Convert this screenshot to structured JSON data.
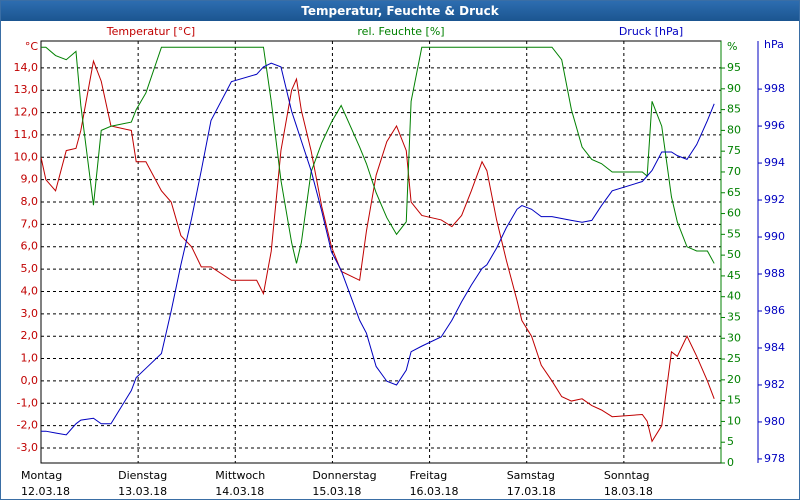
{
  "chart_data": {
    "type": "line",
    "title": "Temperatur, Feuchte & Druck",
    "grid": true,
    "x": [
      0,
      0.05,
      0.15,
      0.26,
      0.36,
      0.41,
      0.54,
      0.62,
      0.72,
      0.93,
      0.98,
      1.08,
      1.24,
      1.34,
      1.44,
      1.55,
      1.65,
      1.75,
      1.96,
      2.22,
      2.29,
      2.37,
      2.47,
      2.58,
      2.63,
      2.68,
      2.78,
      2.89,
      2.99,
      3.09,
      3.28,
      3.35,
      3.45,
      3.56,
      3.66,
      3.76,
      3.81,
      3.92,
      4.12,
      4.23,
      4.33,
      4.43,
      4.54,
      4.59,
      4.69,
      4.79,
      4.9,
      4.95,
      5.05,
      5.15,
      5.26,
      5.36,
      5.46,
      5.57,
      5.67,
      5.77,
      5.88,
      6.19,
      6.24,
      6.29,
      6.39,
      6.49,
      6.55,
      6.65,
      6.75,
      6.86,
      6.93
    ],
    "xlim": [
      0,
      7
    ],
    "xticks": [
      {
        "value": 0,
        "label": "Montag",
        "date": "12.03.18"
      },
      {
        "value": 1,
        "label": "Dienstag",
        "date": "13.03.18"
      },
      {
        "value": 2,
        "label": "Mittwoch",
        "date": "14.03.18"
      },
      {
        "value": 3,
        "label": "Donnerstag",
        "date": "15.03.18"
      },
      {
        "value": 4,
        "label": "Freitag",
        "date": "16.03.18"
      },
      {
        "value": 5,
        "label": "Samstag",
        "date": "17.03.18"
      },
      {
        "value": 6,
        "label": "Sonntag",
        "date": "18.03.18"
      }
    ],
    "y_unit": "°C",
    "ylim": [
      -3.67,
      15.2
    ],
    "yticks": [
      {
        "value": -3,
        "label": "-3,0"
      },
      {
        "value": -2,
        "label": "-2,0"
      },
      {
        "value": -1,
        "label": "-1,0"
      },
      {
        "value": 0,
        "label": "0,0"
      },
      {
        "value": 1,
        "label": "1,0"
      },
      {
        "value": 2,
        "label": "2,0"
      },
      {
        "value": 3,
        "label": "3,0"
      },
      {
        "value": 4,
        "label": "4,0"
      },
      {
        "value": 5,
        "label": "5,0"
      },
      {
        "value": 6,
        "label": "6,0"
      },
      {
        "value": 7,
        "label": "7,0"
      },
      {
        "value": 8,
        "label": "8,0"
      },
      {
        "value": 9,
        "label": "9,0"
      },
      {
        "value": 10,
        "label": "10,0"
      },
      {
        "value": 11,
        "label": "11,0"
      },
      {
        "value": 12,
        "label": "12,0"
      },
      {
        "value": 13,
        "label": "13,0"
      },
      {
        "value": 14,
        "label": "14,0"
      }
    ],
    "y2_unit": "%",
    "y2lim": [
      0,
      101.5
    ],
    "y2ticks": [
      0,
      5,
      10,
      15,
      20,
      25,
      30,
      35,
      40,
      45,
      50,
      55,
      60,
      65,
      70,
      75,
      80,
      85,
      90,
      95
    ],
    "y3_unit": "hPa",
    "y3lim": [
      977.78,
      1000.6
    ],
    "y3ticks": [
      978,
      980,
      982,
      984,
      986,
      988,
      990,
      992,
      994,
      996,
      998
    ],
    "series": [
      {
        "name": "Temperatur [°C]",
        "color": "#c00000",
        "axis": "y",
        "values": [
          10.0,
          9.0,
          8.5,
          10.3,
          10.4,
          11.2,
          14.3,
          13.4,
          11.4,
          11.2,
          9.8,
          9.8,
          8.5,
          8.0,
          6.5,
          6.0,
          5.1,
          5.1,
          4.5,
          4.5,
          3.9,
          5.8,
          10.3,
          13.0,
          13.5,
          12.1,
          10.3,
          7.8,
          6.0,
          4.9,
          4.5,
          6.7,
          9.2,
          10.7,
          11.4,
          10.3,
          8.0,
          7.4,
          7.2,
          6.9,
          7.4,
          8.5,
          9.8,
          9.4,
          7.2,
          5.4,
          3.6,
          2.7,
          2.0,
          0.7,
          0.0,
          -0.7,
          -0.9,
          -0.8,
          -1.1,
          -1.3,
          -1.6,
          -1.5,
          -1.8,
          -2.7,
          -2.0,
          1.3,
          1.1,
          2.0,
          1.1,
          0.0,
          -0.8
        ]
      },
      {
        "name": "rel. Feuchte [%]",
        "color": "#008000",
        "axis": "y2",
        "values": [
          100,
          100,
          98,
          97,
          99,
          86,
          62,
          80,
          81,
          82,
          85,
          89,
          100,
          100,
          100,
          100,
          100,
          100,
          100,
          100,
          100,
          87,
          68,
          53,
          48,
          53,
          70,
          77,
          82,
          86,
          76,
          72,
          65,
          59,
          55,
          58,
          87,
          100,
          100,
          100,
          100,
          100,
          100,
          100,
          100,
          100,
          100,
          100,
          100,
          100,
          100,
          97,
          85,
          76,
          73,
          72,
          70,
          70,
          69,
          87,
          81,
          64,
          58,
          52,
          51,
          51,
          48
        ]
      },
      {
        "name": "Druck [hPa]",
        "color": "#0000c0",
        "axis": "y3",
        "values": [
          979.5,
          979.5,
          979.4,
          979.3,
          979.9,
          980.1,
          980.2,
          979.9,
          979.9,
          981.7,
          982.4,
          982.9,
          983.7,
          986.0,
          988.5,
          991.0,
          993.6,
          996.3,
          998.4,
          998.8,
          999.2,
          999.4,
          999.2,
          996.8,
          996.0,
          995.2,
          993.6,
          991.4,
          989.2,
          988.2,
          985.5,
          984.8,
          983.0,
          982.2,
          982.0,
          982.8,
          983.8,
          984.1,
          984.6,
          985.5,
          986.5,
          987.4,
          988.3,
          988.5,
          989.4,
          990.5,
          991.5,
          991.7,
          991.5,
          991.1,
          991.1,
          991.0,
          990.9,
          990.8,
          990.9,
          991.7,
          992.5,
          993.0,
          993.3,
          993.6,
          994.6,
          994.6,
          994.4,
          994.2,
          995.0,
          996.3,
          997.2
        ]
      }
    ]
  }
}
